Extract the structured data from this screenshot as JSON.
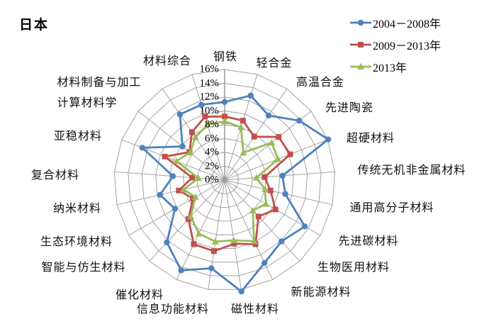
{
  "page": {
    "title": "日本"
  },
  "legend": [
    {
      "label": "2004－2008年",
      "color": "#4F81BD",
      "marker": "circle"
    },
    {
      "label": "2009－2013年",
      "color": "#C0504D",
      "marker": "square"
    },
    {
      "label": "2013年",
      "color": "#9BBB59",
      "marker": "triangle"
    }
  ],
  "chart_data": {
    "type": "radar",
    "title": "日本",
    "categories": [
      "钢铁",
      "轻合金",
      "高温合金",
      "先进陶瓷",
      "超硬材料",
      "传统无机非金属材料",
      "通用高分子材料",
      "先进碳材料",
      "生物医用材料",
      "新能源材料",
      "磁性材料",
      "信息功能材料",
      "催化材料",
      "智能与仿生材料",
      "生态环境材料",
      "纳米材料",
      "复合材料",
      "亚稳材料",
      "计算材料学",
      "材料制备与加工",
      "材料综合"
    ],
    "series": [
      {
        "name": "2004－2008年",
        "color": "#4F81BD",
        "marker": "circle",
        "values": [
          11.3,
          12.8,
          11.3,
          13.8,
          16.1,
          8.4,
          9.0,
          13.4,
          12.1,
          13.3,
          16.3,
          12.9,
          14.5,
          12.3,
          8.3,
          9.6,
          7.5,
          12.8,
          7.8,
          11.5,
          11.4
        ]
      },
      {
        "name": "2009－2013年",
        "color": "#C0504D",
        "marker": "square",
        "values": [
          9.2,
          9.0,
          7.6,
          10.0,
          10.2,
          5.8,
          6.8,
          8.5,
          7.2,
          10.3,
          9.3,
          10.4,
          10.3,
          7.7,
          5.3,
          6.8,
          4.7,
          9.3,
          6.5,
          8.4,
          9.6
        ]
      },
      {
        "name": "2013年",
        "color": "#9BBB59",
        "marker": "triangle",
        "values": [
          8.5,
          8.0,
          4.8,
          8.7,
          8.3,
          4.6,
          6.0,
          6.9,
          6.0,
          9.8,
          8.8,
          9.0,
          8.6,
          7.2,
          4.9,
          6.1,
          3.8,
          7.5,
          6.4,
          7.5,
          8.4
        ]
      }
    ],
    "radial_axis": {
      "min": 0,
      "max": 16,
      "step": 2,
      "tick_labels": [
        "0%",
        "2%",
        "4%",
        "6%",
        "8%",
        "10%",
        "12%",
        "14%",
        "16%"
      ],
      "unit": "%"
    },
    "grid": true,
    "legend_position": "top-right",
    "grid_color": "#9a9a9a"
  }
}
